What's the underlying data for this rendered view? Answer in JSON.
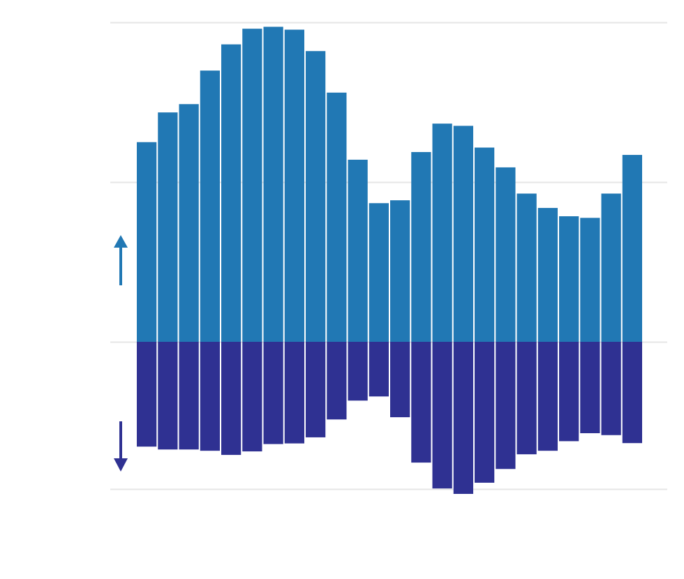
{
  "chart_data": {
    "type": "bar",
    "stacked": "diverging",
    "title": "",
    "xlabel": "",
    "ylabel": "",
    "ylim": [
      -0.46,
      1.0
    ],
    "gridlines": [
      -0.46,
      0,
      0.5,
      1.0
    ],
    "grid": true,
    "legend": "none",
    "x": [
      1,
      2,
      3,
      4,
      5,
      6,
      7,
      8,
      9,
      10,
      11,
      12,
      13,
      14,
      15,
      16,
      17,
      18,
      19,
      20,
      21,
      22,
      23,
      24
    ],
    "series": [
      {
        "direction": "up",
        "color": "#2178b4",
        "values": [
          0.625,
          0.718,
          0.744,
          0.849,
          0.931,
          0.98,
          0.986,
          0.977,
          0.91,
          0.78,
          0.57,
          0.434,
          0.443,
          0.594,
          0.683,
          0.676,
          0.608,
          0.546,
          0.464,
          0.419,
          0.393,
          0.388,
          0.464,
          0.585
        ]
      },
      {
        "direction": "down",
        "color": "#2f3192",
        "values": [
          -0.328,
          -0.337,
          -0.337,
          -0.341,
          -0.354,
          -0.343,
          -0.32,
          -0.318,
          -0.299,
          -0.243,
          -0.184,
          -0.171,
          -0.236,
          -0.378,
          -0.459,
          -0.476,
          -0.441,
          -0.398,
          -0.352,
          -0.341,
          -0.311,
          -0.286,
          -0.292,
          -0.317
        ]
      }
    ],
    "indicators": [
      {
        "name": "up-arrow",
        "color": "#2178b4"
      },
      {
        "name": "down-arrow",
        "color": "#2f3192"
      }
    ]
  }
}
